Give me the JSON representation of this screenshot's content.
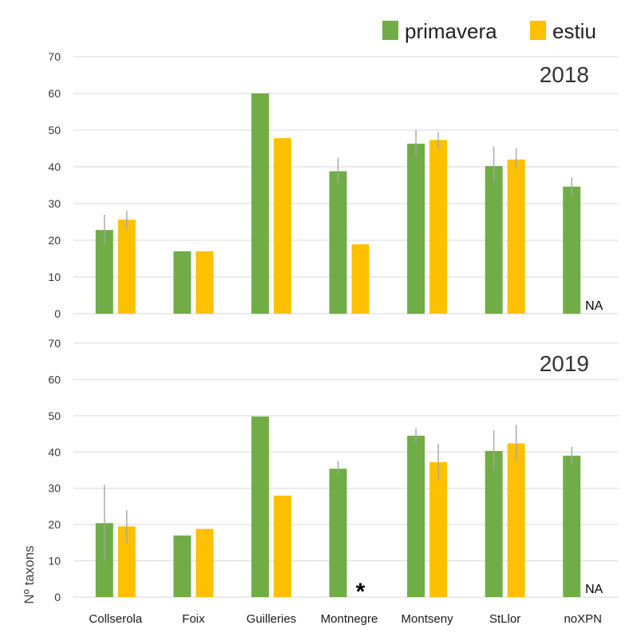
{
  "colors": {
    "primavera": "#70ad47",
    "estiu": "#ffc000",
    "grid": "#d9d9d9",
    "errorbar": "#a6a6a6"
  },
  "legend": {
    "items": [
      "primavera",
      "estiu"
    ]
  },
  "y_axis_label": "Nº taxons",
  "chart_data": [
    {
      "type": "bar",
      "title": "2018",
      "ylim": [
        0,
        70
      ],
      "yticks": [
        0,
        10,
        20,
        30,
        40,
        50,
        60,
        70
      ],
      "categories": [
        "Collserola",
        "Foix",
        "Guilleries",
        "Montnegre",
        "Montseny",
        "StLlor",
        "noXPN"
      ],
      "series": [
        {
          "name": "primavera",
          "values": [
            22.8,
            17,
            60,
            38.8,
            46.3,
            40.2,
            34.6
          ],
          "err_low": [
            19,
            null,
            null,
            35.5,
            43,
            36,
            32
          ],
          "err_high": [
            27,
            null,
            null,
            42.5,
            50,
            45.5,
            37
          ]
        },
        {
          "name": "estiu",
          "values": [
            25.6,
            17,
            47.8,
            18.9,
            47.3,
            42,
            null
          ],
          "err_low": [
            23,
            null,
            null,
            null,
            45,
            39.5,
            null
          ],
          "err_high": [
            28,
            null,
            null,
            null,
            49.5,
            45,
            null
          ]
        }
      ],
      "annotations": [
        {
          "category": "noXPN",
          "series": "estiu",
          "text": "NA"
        }
      ]
    },
    {
      "type": "bar",
      "title": "2019",
      "ylim": [
        0,
        70
      ],
      "yticks": [
        0,
        10,
        20,
        30,
        40,
        50,
        60,
        70
      ],
      "categories": [
        "Collserola",
        "Foix",
        "Guilleries",
        "Montnegre",
        "Montseny",
        "StLlor",
        "noXPN"
      ],
      "series": [
        {
          "name": "primavera",
          "values": [
            20.4,
            17,
            49.8,
            35.4,
            44.5,
            40.3,
            39
          ],
          "err_low": [
            10,
            null,
            null,
            33.5,
            42.5,
            35,
            36.5
          ],
          "err_high": [
            31,
            null,
            null,
            37.5,
            46.5,
            46,
            41.5
          ]
        },
        {
          "name": "estiu",
          "values": [
            19.5,
            18.8,
            28,
            null,
            37.2,
            42.4,
            null
          ],
          "err_low": [
            15,
            null,
            null,
            null,
            32,
            37.5,
            null
          ],
          "err_high": [
            24,
            null,
            null,
            null,
            42.3,
            47.5,
            null
          ]
        }
      ],
      "annotations": [
        {
          "category": "Montnegre",
          "series": "estiu",
          "text": "*"
        },
        {
          "category": "noXPN",
          "series": "estiu",
          "text": "NA"
        }
      ]
    }
  ]
}
